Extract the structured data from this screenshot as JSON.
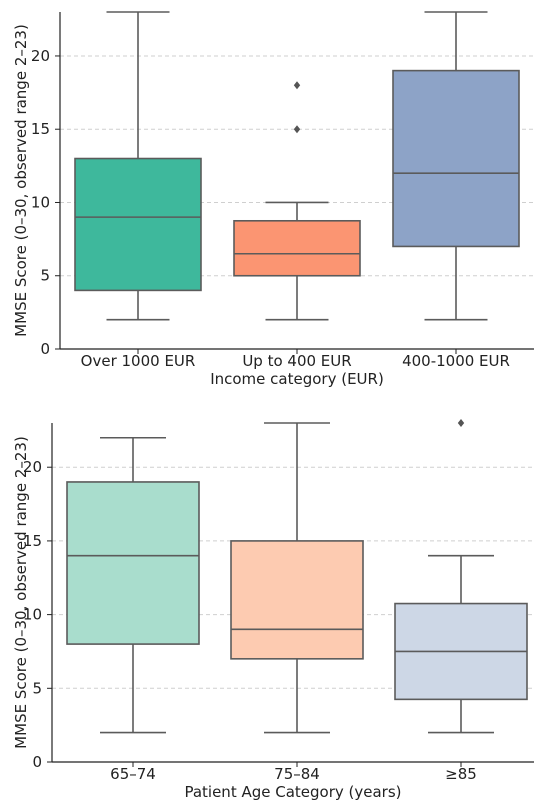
{
  "chart_data": [
    {
      "type": "box",
      "xlabel": "Income category (EUR)",
      "ylabel": "MMSE Score (0–30, observed range 2–23)",
      "ylim": [
        0,
        23
      ],
      "yticks": [
        0,
        5,
        10,
        15,
        20
      ],
      "grid": "horizontal dashed",
      "categories": [
        "Over 1000 EUR",
        "Up to 400 EUR",
        "400-1000 EUR"
      ],
      "colors": [
        "#3eb89c",
        "#fb9572",
        "#8da3c7"
      ],
      "boxes": [
        {
          "min": 2,
          "q1": 4,
          "median": 9,
          "q3": 13,
          "max": 23,
          "outliers": []
        },
        {
          "min": 2,
          "q1": 5,
          "median": 6.5,
          "q3": 8.75,
          "max": 10,
          "outliers": [
            15,
            18
          ]
        },
        {
          "min": 2,
          "q1": 7,
          "median": 12,
          "q3": 19,
          "max": 23,
          "outliers": []
        }
      ]
    },
    {
      "type": "box",
      "xlabel": "Patient Age Category (years)",
      "ylabel": "MMSE Score (0–30, observed range 2–23)",
      "ylim": [
        0,
        23
      ],
      "yticks": [
        0,
        5,
        10,
        15,
        20
      ],
      "grid": "horizontal dashed",
      "categories": [
        "65–74",
        "75–84",
        "≥85"
      ],
      "colors": [
        "#a9ddcd",
        "#fdcbb1",
        "#cdd7e6"
      ],
      "boxes": [
        {
          "min": 2,
          "q1": 8,
          "median": 14,
          "q3": 19,
          "max": 22,
          "outliers": []
        },
        {
          "min": 2,
          "q1": 7,
          "median": 9,
          "q3": 15,
          "max": 23,
          "outliers": []
        },
        {
          "min": 2,
          "q1": 4.25,
          "median": 7.5,
          "q3": 10.75,
          "max": 14,
          "outliers": [
            23
          ]
        }
      ]
    }
  ]
}
